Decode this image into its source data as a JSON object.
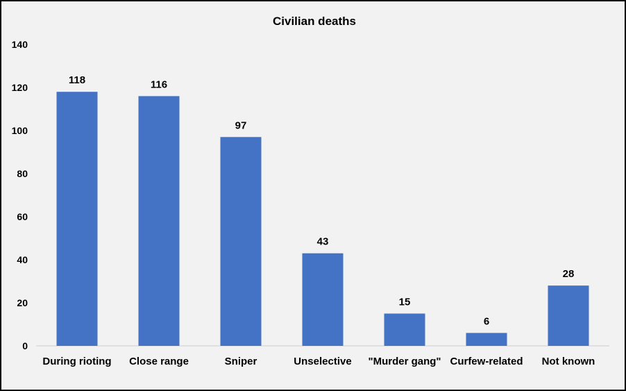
{
  "chart_data": {
    "type": "bar",
    "title": "Civilian deaths",
    "xlabel": "",
    "ylabel": "",
    "categories": [
      "During rioting",
      "Close range",
      "Sniper",
      "Unselective",
      "\"Murder gang\"",
      "Curfew-related",
      "Not known"
    ],
    "values": [
      118,
      116,
      97,
      43,
      15,
      6,
      28
    ],
    "ylim": [
      0,
      140
    ],
    "yticks": [
      0,
      20,
      40,
      60,
      80,
      100,
      120,
      140
    ],
    "grid": false,
    "legend": "none",
    "data_labels": true,
    "colors": {
      "bar": "#4472c4",
      "background": "#f2f2f2",
      "axis": "#d9d9d9"
    }
  }
}
